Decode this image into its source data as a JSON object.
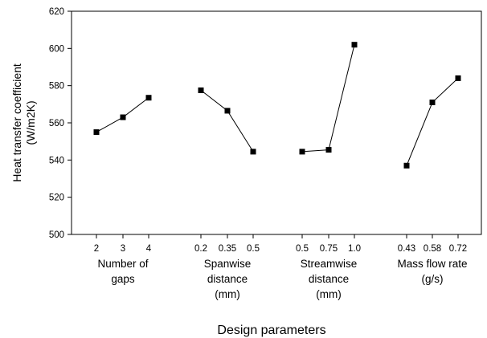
{
  "chart_data": {
    "type": "line",
    "xlabel": "Design parameters",
    "ylabel_lines": [
      "Heat transfer coefficient",
      "(W/m2K)"
    ],
    "ylim": [
      500,
      620
    ],
    "yticks": [
      500,
      520,
      540,
      560,
      580,
      600,
      620
    ],
    "grid": false,
    "groups": [
      {
        "name_lines": [
          "Number of",
          "gaps"
        ],
        "categories": [
          "2",
          "3",
          "4"
        ],
        "values": [
          555,
          563,
          573.5
        ]
      },
      {
        "name_lines": [
          "Spanwise",
          "distance",
          "(mm)"
        ],
        "categories": [
          "0.2",
          "0.35",
          "0.5"
        ],
        "values": [
          577.5,
          566.5,
          544.5
        ]
      },
      {
        "name_lines": [
          "Streamwise",
          "distance",
          "(mm)"
        ],
        "categories": [
          "0.5",
          "0.75",
          "1.0"
        ],
        "values": [
          544.5,
          545.5,
          602
        ]
      },
      {
        "name_lines": [
          "Mass flow rate",
          "(g/s)"
        ],
        "categories": [
          "0.43",
          "0.58",
          "0.72"
        ],
        "values": [
          537,
          571,
          584
        ]
      }
    ]
  }
}
